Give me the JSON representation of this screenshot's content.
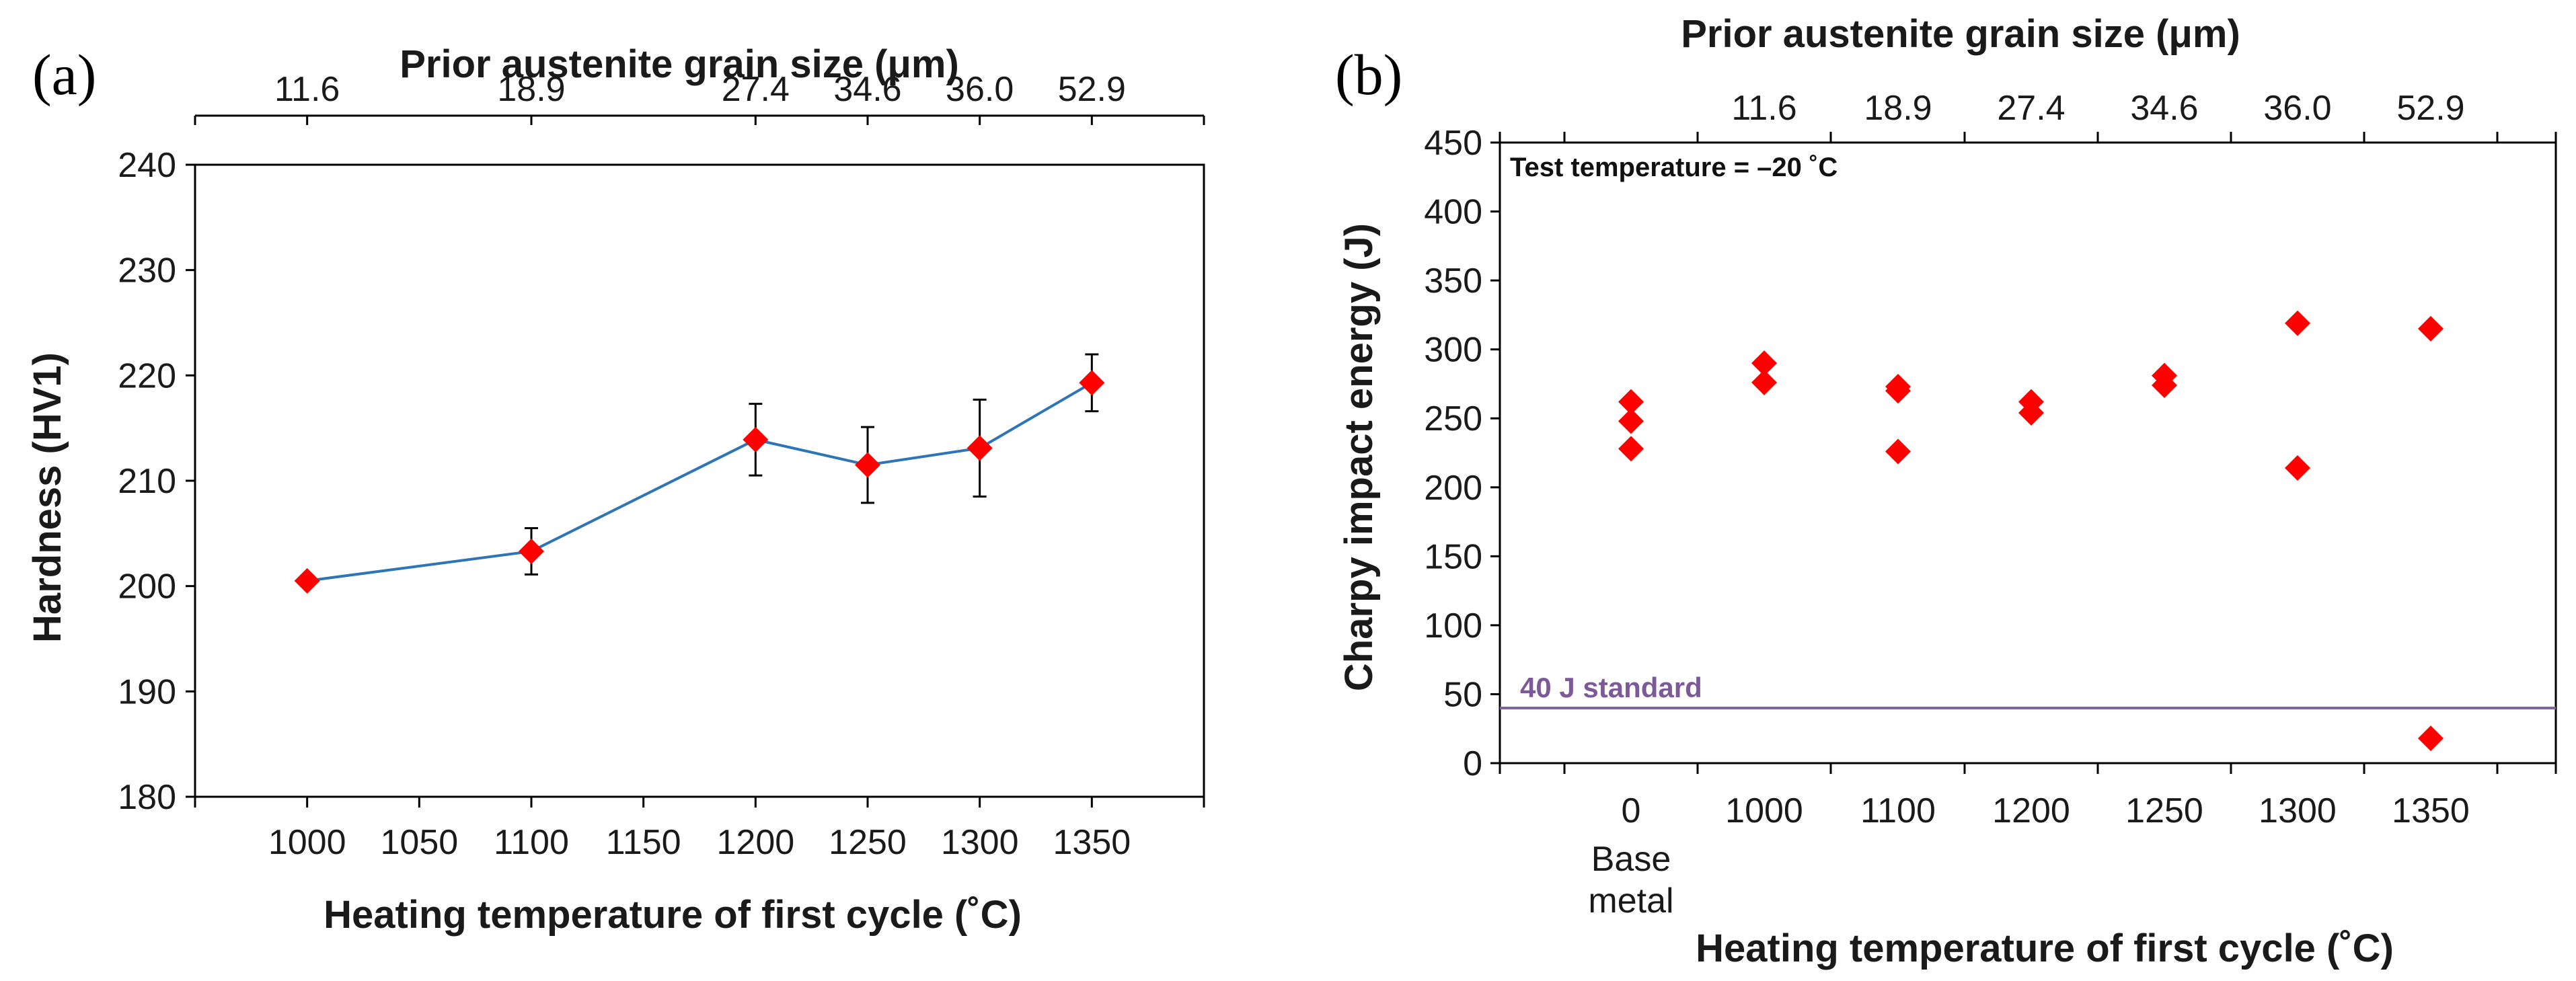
{
  "chart_data": [
    {
      "type": "line",
      "panel_label": "(a)",
      "title": "",
      "xlabel": "Heating temperature of first cycle (˚C)",
      "ylabel": "Hardness (HV1)",
      "top_xlabel": "Prior austenite grain size (μm)",
      "xlim": [
        950,
        1400
      ],
      "ylim": [
        180,
        240
      ],
      "x_ticks": [
        1000,
        1050,
        1100,
        1150,
        1200,
        1250,
        1300,
        1350
      ],
      "x_tick_labels": [
        "1000",
        "1050",
        "1100",
        "1150",
        "1200",
        "1250",
        "1300",
        "1350"
      ],
      "y_ticks": [
        180,
        190,
        200,
        210,
        220,
        230,
        240
      ],
      "y_tick_labels": [
        "180",
        "190",
        "200",
        "210",
        "220",
        "230",
        "240"
      ],
      "top_ticks": [
        1000,
        1100,
        1200,
        1250,
        1300,
        1350
      ],
      "top_tick_labels": [
        "11.6",
        "18.9",
        "27.4",
        "34.6",
        "36.0",
        "52.9"
      ],
      "series": [
        {
          "name": "Hardness",
          "x": [
            1000,
            1100,
            1200,
            1250,
            1300,
            1350
          ],
          "y": [
            200.5,
            203.3,
            213.9,
            211.5,
            213.1,
            219.3
          ],
          "err": [
            0,
            2.2,
            3.4,
            3.6,
            4.6,
            2.7
          ],
          "line_color": "#2e75b6",
          "marker_color": "#ff0000"
        }
      ]
    },
    {
      "type": "scatter",
      "panel_label": "(b)",
      "title": "",
      "xlabel": "Heating temperature of first cycle (˚C)",
      "ylabel": "Charpy impact energy (J)",
      "top_xlabel": "Prior austenite grain size (μm)",
      "annotation": "Test temperature = –20 ˚C",
      "ylim": [
        0,
        450
      ],
      "categories": [
        "0",
        "1000",
        "1100",
        "1200",
        "1250",
        "1300",
        "1350"
      ],
      "category_sublabel": [
        "Base",
        "metal"
      ],
      "y_ticks": [
        0,
        50,
        100,
        150,
        200,
        250,
        300,
        350,
        400,
        450
      ],
      "y_tick_labels": [
        "0",
        "50",
        "100",
        "150",
        "200",
        "250",
        "300",
        "350",
        "400",
        "450"
      ],
      "top_tick_labels": [
        "11.6",
        "18.9",
        "27.4",
        "34.6",
        "36.0",
        "52.9"
      ],
      "points": [
        {
          "category": "0",
          "values": [
            262,
            248,
            228
          ]
        },
        {
          "category": "1000",
          "values": [
            290,
            276
          ]
        },
        {
          "category": "1100",
          "values": [
            273,
            270,
            226
          ]
        },
        {
          "category": "1200",
          "values": [
            262,
            254
          ]
        },
        {
          "category": "1250",
          "values": [
            281,
            274
          ]
        },
        {
          "category": "1300",
          "values": [
            319,
            214
          ]
        },
        {
          "category": "1350",
          "values": [
            315,
            18
          ]
        }
      ],
      "reference_line": {
        "value": 40,
        "label": "40 J standard",
        "color": "#8064a2"
      },
      "marker_color": "#ff0000"
    }
  ]
}
